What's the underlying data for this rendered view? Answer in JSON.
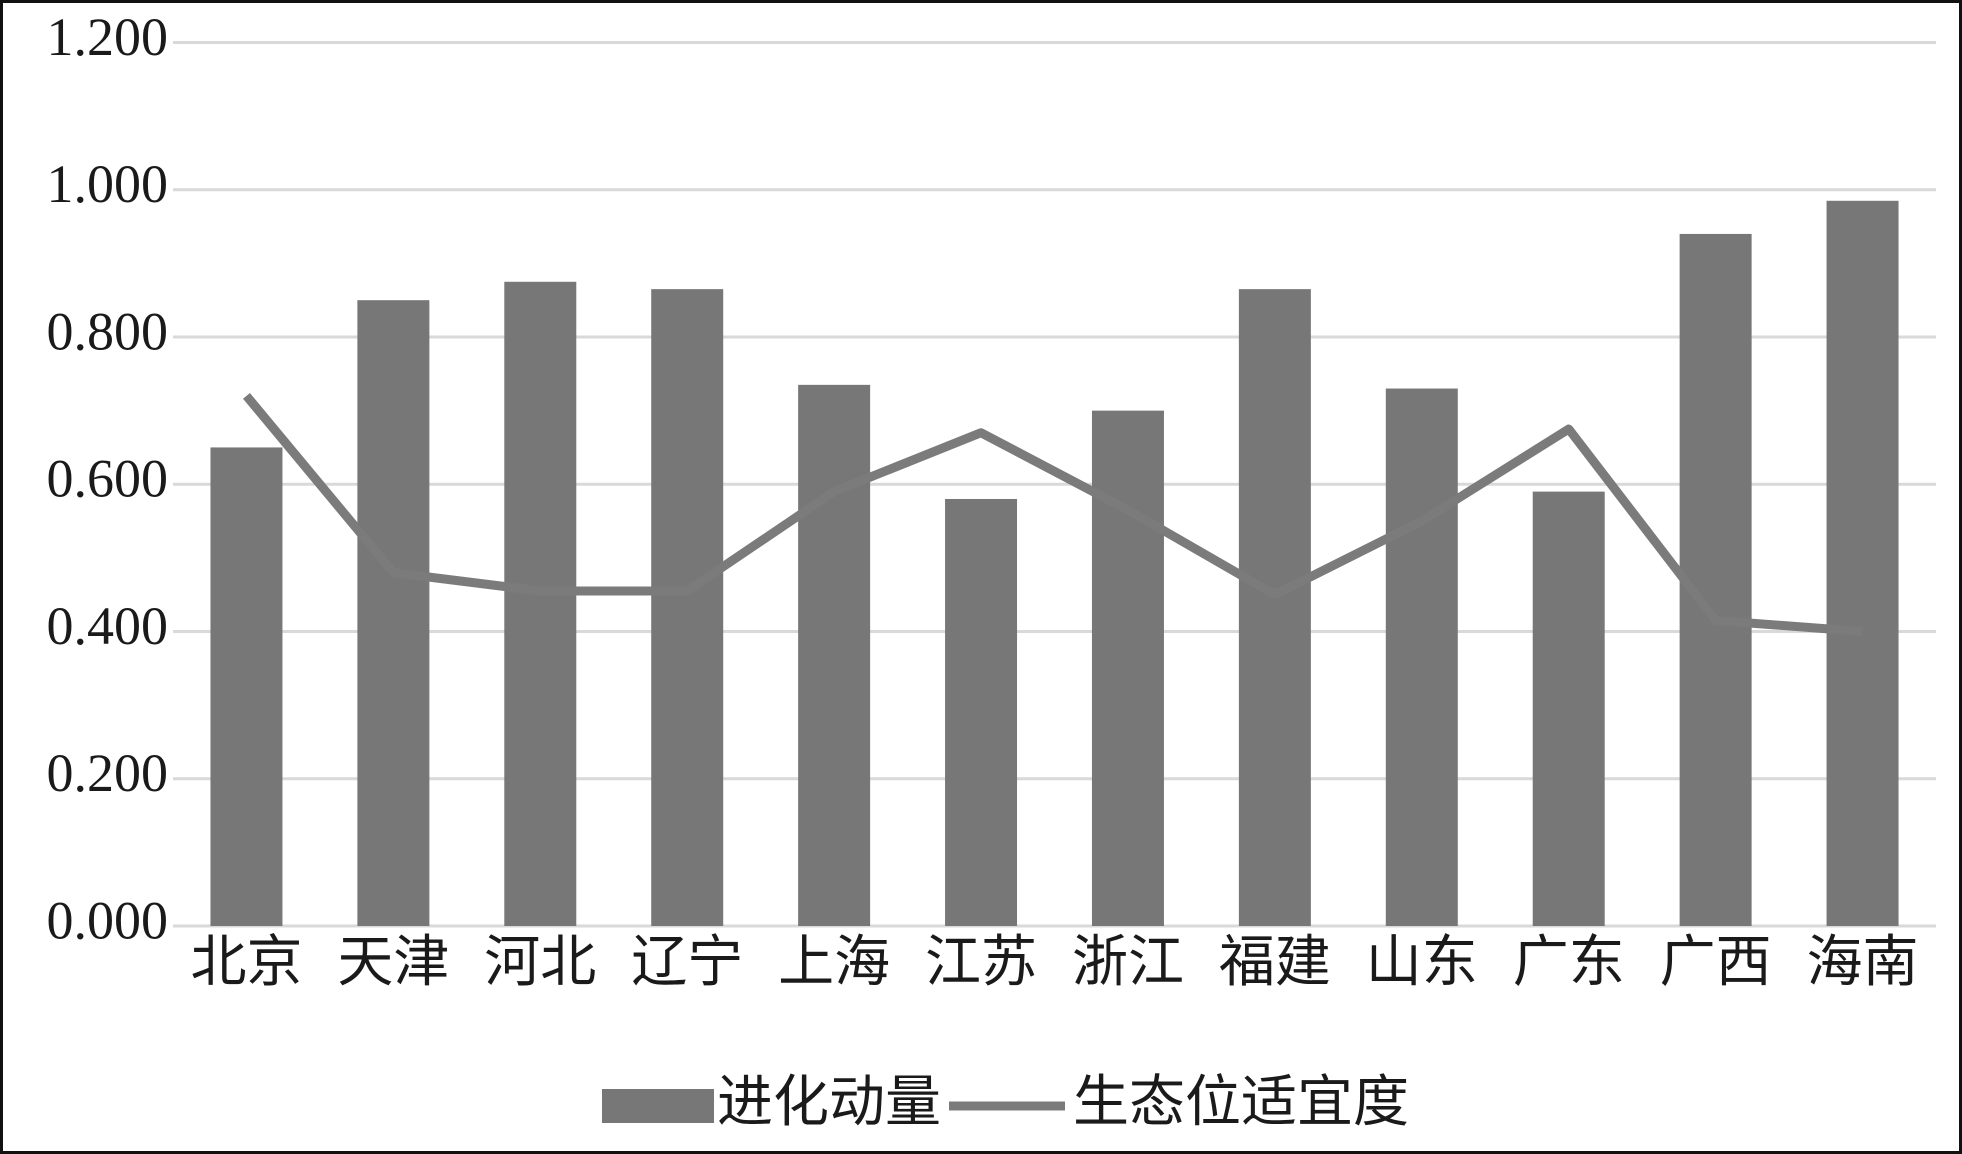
{
  "chart_data": {
    "type": "bar-line",
    "categories": [
      "北京",
      "天津",
      "河北",
      "辽宁",
      "上海",
      "江苏",
      "浙江",
      "福建",
      "山东",
      "广东",
      "广西",
      "海南"
    ],
    "series": [
      {
        "name": "进化动量",
        "type": "bar",
        "color": "#777777",
        "values": [
          0.65,
          0.85,
          0.875,
          0.865,
          0.735,
          0.58,
          0.7,
          0.865,
          0.73,
          0.59,
          0.94,
          0.985
        ]
      },
      {
        "name": "生态位适宜度",
        "type": "line",
        "color": "#7b7b7b",
        "values": [
          0.72,
          0.48,
          0.455,
          0.455,
          0.59,
          0.67,
          0.565,
          0.45,
          0.55,
          0.675,
          0.415,
          0.4
        ]
      }
    ],
    "ylim": [
      0,
      1.2
    ],
    "yticks": [
      {
        "value": 0,
        "label": "0.000"
      },
      {
        "value": 0.2,
        "label": "0.200"
      },
      {
        "value": 0.4,
        "label": "0.400"
      },
      {
        "value": 0.6,
        "label": "0.600"
      },
      {
        "value": 0.8,
        "label": "0.800"
      },
      {
        "value": 1.0,
        "label": "1.000"
      },
      {
        "value": 1.2,
        "label": "1.200"
      }
    ],
    "grid": true,
    "legend": "bottom"
  }
}
